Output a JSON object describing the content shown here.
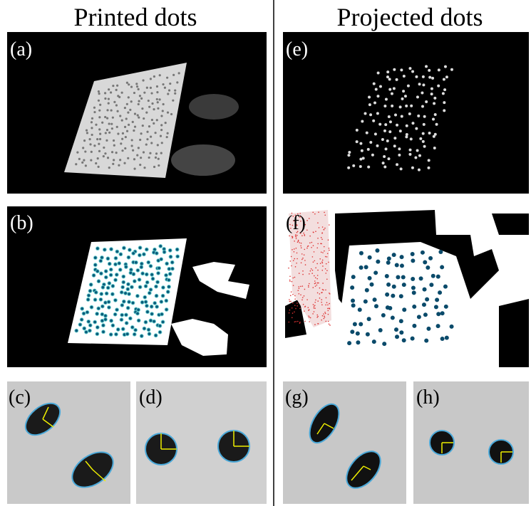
{
  "header": {
    "left_title": "Printed dots",
    "right_title": "Projected dots"
  },
  "panels": [
    {
      "label": "(a)"
    },
    {
      "label": "(b)"
    },
    {
      "label": "(c)"
    },
    {
      "label": "(d)"
    },
    {
      "label": "(e)"
    },
    {
      "label": "(f)"
    },
    {
      "label": "(g)"
    },
    {
      "label": "(h)"
    }
  ]
}
